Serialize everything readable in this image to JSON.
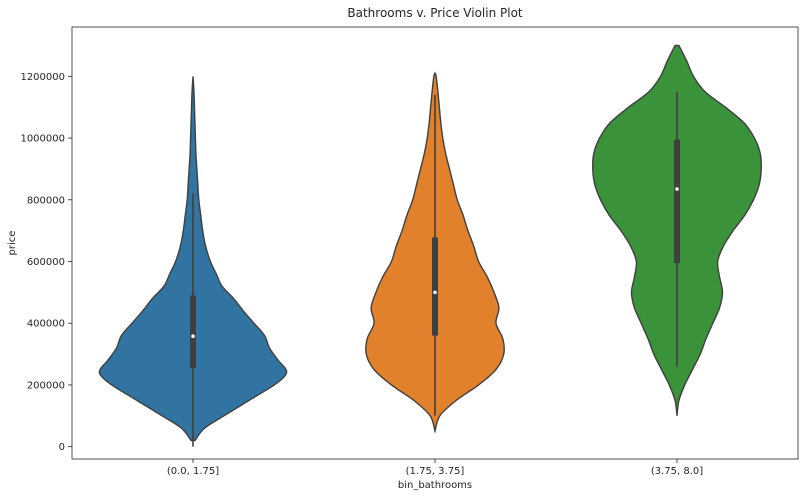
{
  "chart_data": {
    "type": "violin",
    "title": "Bathrooms v. Price Violin Plot",
    "xlabel": "bin_bathrooms",
    "ylabel": "price",
    "categories": [
      "(0.0, 1.75]",
      "(1.75, 3.75]",
      "(3.75, 8.0]"
    ],
    "ylim": [
      -40000,
      1360000
    ],
    "yticks": [
      0,
      200000,
      400000,
      600000,
      800000,
      1000000,
      1200000
    ],
    "ytick_labels": [
      "0",
      "200000",
      "400000",
      "600000",
      "800000",
      "1000000",
      "1200000"
    ],
    "grid": false,
    "series": [
      {
        "color": "#3274a1",
        "whisker_low": 0,
        "q1": 255000,
        "median": 358000,
        "q3": 490000,
        "whisker_high": 820000,
        "profile_price": [
          20000,
          60000,
          100000,
          150000,
          200000,
          230000,
          250000,
          280000,
          320000,
          360000,
          400000,
          440000,
          480000,
          520000,
          560000,
          600000,
          650000,
          700000,
          750000,
          800000,
          850000,
          900000,
          950000,
          1000000,
          1050000,
          1100000,
          1150000,
          1200000
        ],
        "profile_halfwidth": [
          0.02,
          0.12,
          0.32,
          0.58,
          0.84,
          0.95,
          0.96,
          0.88,
          0.79,
          0.74,
          0.63,
          0.52,
          0.42,
          0.3,
          0.24,
          0.18,
          0.13,
          0.1,
          0.08,
          0.06,
          0.05,
          0.04,
          0.03,
          0.025,
          0.02,
          0.015,
          0.01,
          0.0
        ]
      },
      {
        "color": "#e1812c",
        "whisker_low": 100000,
        "q1": 360000,
        "median": 500000,
        "q3": 678000,
        "whisker_high": 1140000,
        "profile_price": [
          50000,
          100000,
          150000,
          200000,
          250000,
          300000,
          350000,
          400000,
          450000,
          500000,
          550000,
          600000,
          650000,
          700000,
          750000,
          800000,
          850000,
          900000,
          950000,
          1000000,
          1050000,
          1100000,
          1150000,
          1200000,
          1210000
        ],
        "profile_halfwidth": [
          0.0,
          0.05,
          0.22,
          0.45,
          0.63,
          0.71,
          0.7,
          0.63,
          0.66,
          0.61,
          0.54,
          0.45,
          0.4,
          0.34,
          0.29,
          0.23,
          0.19,
          0.15,
          0.11,
          0.08,
          0.06,
          0.045,
          0.03,
          0.012,
          0.0
        ]
      },
      {
        "color": "#3a923a",
        "whisker_low": 260000,
        "q1": 595000,
        "median": 835000,
        "q3": 995000,
        "whisker_high": 1150000,
        "profile_price": [
          100000,
          150000,
          200000,
          250000,
          300000,
          350000,
          400000,
          450000,
          500000,
          550000,
          600000,
          650000,
          700000,
          750000,
          800000,
          850000,
          900000,
          950000,
          1000000,
          1050000,
          1100000,
          1150000,
          1200000,
          1250000,
          1300000
        ],
        "profile_halfwidth": [
          0.0,
          0.02,
          0.08,
          0.16,
          0.24,
          0.3,
          0.37,
          0.44,
          0.47,
          0.44,
          0.42,
          0.48,
          0.58,
          0.7,
          0.79,
          0.85,
          0.87,
          0.86,
          0.8,
          0.69,
          0.5,
          0.29,
          0.17,
          0.1,
          0.02
        ]
      }
    ]
  }
}
